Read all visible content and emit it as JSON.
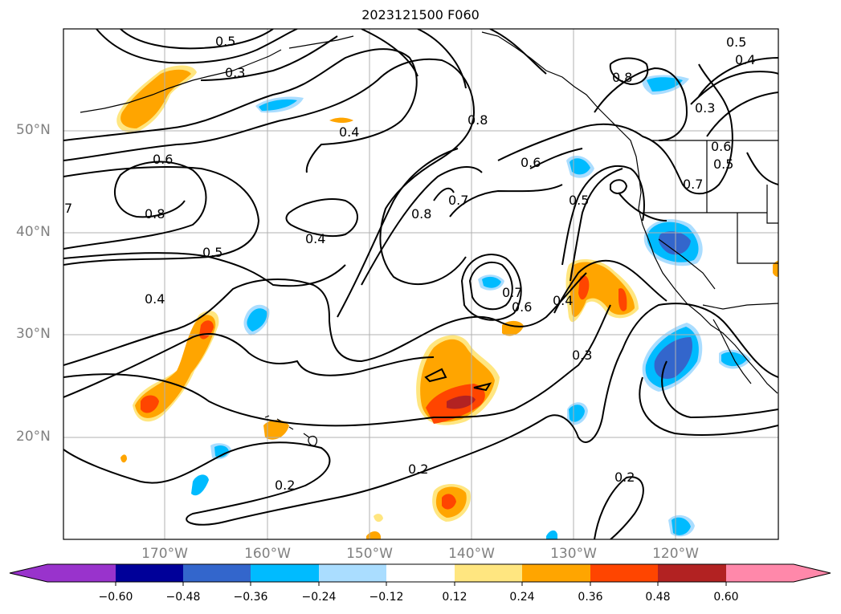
{
  "title": "2023121500 F060",
  "map": {
    "lat_labels": [
      "50°N",
      "40°N",
      "30°N",
      "20°N"
    ],
    "lon_labels": [
      "170°W",
      "160°W",
      "150°W",
      "140°W",
      "130°W",
      "120°W"
    ],
    "contour_labels": [
      "0.5",
      "0.3",
      "0.4",
      "0.6",
      "0.8",
      "7",
      "0.5",
      "0.4",
      "0.8",
      "0.7",
      "0.6",
      "0.8",
      "0.5",
      "0.4",
      "0.3",
      "0.7",
      "0.6",
      "0.5",
      "0.7",
      "0.6",
      "0.4",
      "0.3",
      "0.2",
      "0.2",
      "0.2",
      "0.5",
      "0.4"
    ]
  },
  "colorbar": {
    "tick_labels": [
      "−0.60",
      "−0.48",
      "−0.36",
      "−0.24",
      "−0.12",
      "0.12",
      "0.24",
      "0.36",
      "0.48",
      "0.60"
    ],
    "colors": [
      "#9933cc",
      "#000099",
      "#3366cc",
      "#00bbff",
      "#aaddff",
      "#ffffff",
      "#ffe680",
      "#ffa500",
      "#ff4500",
      "#b22222",
      "#ff88aa"
    ]
  }
}
